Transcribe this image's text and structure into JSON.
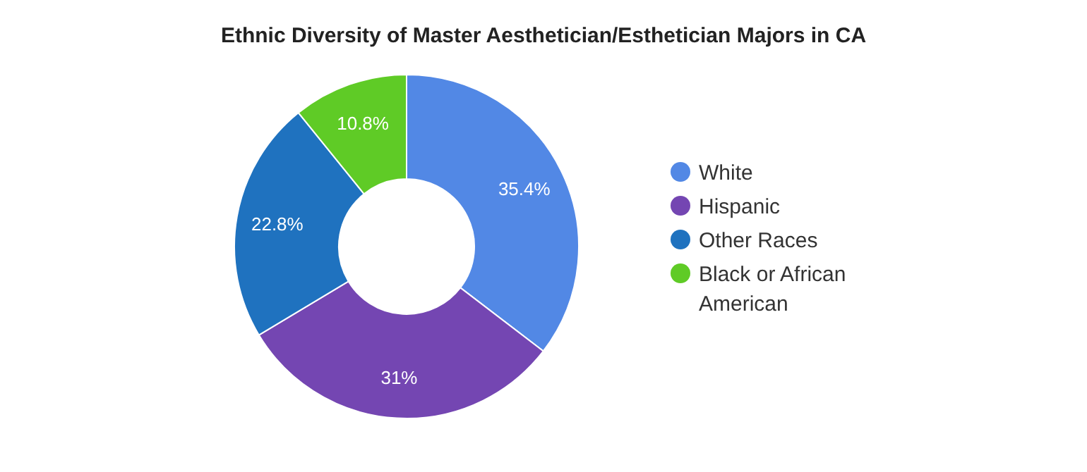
{
  "chart_data": {
    "type": "donut",
    "title": "Ethnic Diversity of Master Aesthetician/Esthetician Majors in CA",
    "categories": [
      "White",
      "Hispanic",
      "Other Races",
      "Black or African American"
    ],
    "values": [
      35.4,
      31,
      22.8,
      10.8
    ],
    "colors": [
      "#5288e5",
      "#7446b2",
      "#1f72bf",
      "#5fcb26"
    ],
    "value_labels": [
      "35.4%",
      "31%",
      "22.8%",
      "10.8%"
    ],
    "legend": "right"
  }
}
